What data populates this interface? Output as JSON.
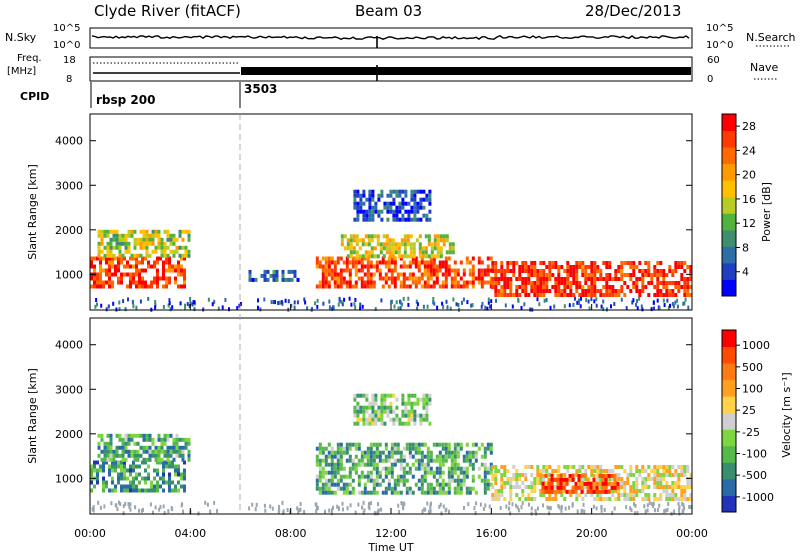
{
  "header": {
    "title": "Clyde River (fitACF)",
    "beam": "Beam 03",
    "date": "28/Dec/2013"
  },
  "top_panels": {
    "nsky_label": "N.Sky",
    "nsky_ticks": [
      "10^5",
      "10^0"
    ],
    "nsearch_label": "N.Search",
    "nsearch_ticks": [
      "10^5",
      "10^0"
    ],
    "freq_label": "Freq.",
    "freq_unit": "[MHz]",
    "freq_ticks": [
      "18",
      "8"
    ],
    "nave_label": "Nave",
    "nave_ticks": [
      "60",
      "0"
    ],
    "cpid_label": "CPID",
    "cpid_segments": [
      {
        "label": "rbsp 200",
        "start_hour": 0
      },
      {
        "label": "3503",
        "start_hour": 6
      }
    ]
  },
  "x_axis": {
    "label": "Time UT",
    "tick_labels": [
      "00:00",
      "04:00",
      "08:00",
      "12:00",
      "16:00",
      "20:00",
      "00:00"
    ],
    "hour_values": [
      0,
      4,
      8,
      12,
      16,
      20,
      24
    ]
  },
  "chart_data": [
    {
      "type": "heatmap",
      "name": "power",
      "xlabel": "Time UT",
      "ylabel": "Slant Range [km]",
      "ylim": [
        200,
        4600
      ],
      "y_ticks": [
        "1000",
        "2000",
        "3000",
        "4000"
      ],
      "colorbar": {
        "label": "Power [dB]",
        "ticks": [
          "4",
          "8",
          "12",
          "16",
          "20",
          "24",
          "28"
        ],
        "colors": [
          "#0000ff",
          "#1e3fc0",
          "#2e6ea8",
          "#3f8f6f",
          "#52b33c",
          "#b9cc23",
          "#ffc000",
          "#ff9a00",
          "#ff6a00",
          "#ff3a00",
          "#ff0000"
        ]
      },
      "regions": [
        {
          "t0": 0.0,
          "t1": 3.8,
          "r0": 700,
          "r1": 1400,
          "level": 0.85
        },
        {
          "t0": 0.3,
          "t1": 4.0,
          "r0": 1400,
          "r1": 2000,
          "level": 0.5
        },
        {
          "t0": 6.2,
          "t1": 8.3,
          "r0": 900,
          "r1": 1100,
          "level": 0.2
        },
        {
          "t0": 9.0,
          "t1": 16.0,
          "r0": 700,
          "r1": 1400,
          "level": 0.85
        },
        {
          "t0": 10.0,
          "t1": 14.5,
          "r0": 1400,
          "r1": 1900,
          "level": 0.55
        },
        {
          "t0": 10.5,
          "t1": 13.5,
          "r0": 2200,
          "r1": 2900,
          "level": 0.15
        },
        {
          "t0": 16.0,
          "t1": 24.0,
          "r0": 500,
          "r1": 1300,
          "level": 0.9
        }
      ]
    },
    {
      "type": "heatmap",
      "name": "velocity",
      "xlabel": "Time UT",
      "ylabel": "Slant Range [km]",
      "ylim": [
        200,
        4600
      ],
      "y_ticks": [
        "1000",
        "2000",
        "3000",
        "4000"
      ],
      "colorbar": {
        "label": "Velocity [m s⁻¹]",
        "ticks": [
          "1000",
          "500",
          "100",
          "25",
          "-25",
          "-100",
          "-500",
          "-1000"
        ],
        "colors": [
          "#2233bb",
          "#2b6aa8",
          "#3a8e70",
          "#54b84a",
          "#7dd63f",
          "#cfcfcf",
          "#ffd24a",
          "#ffa020",
          "#ff7a10",
          "#ff4a00",
          "#ff0000"
        ]
      },
      "regions": [
        {
          "t0": 0.0,
          "t1": 3.8,
          "r0": 700,
          "r1": 1400,
          "level": 0.25
        },
        {
          "t0": 0.3,
          "t1": 4.0,
          "r0": 1400,
          "r1": 2000,
          "level": 0.3
        },
        {
          "t0": 9.0,
          "t1": 16.0,
          "r0": 700,
          "r1": 1800,
          "level": 0.3
        },
        {
          "t0": 10.5,
          "t1": 13.5,
          "r0": 2200,
          "r1": 2900,
          "level": 0.4
        },
        {
          "t0": 16.0,
          "t1": 24.0,
          "r0": 500,
          "r1": 1300,
          "level": 0.55
        },
        {
          "t0": 18.0,
          "t1": 21.0,
          "r0": 700,
          "r1": 1100,
          "level": 0.85
        }
      ]
    }
  ]
}
